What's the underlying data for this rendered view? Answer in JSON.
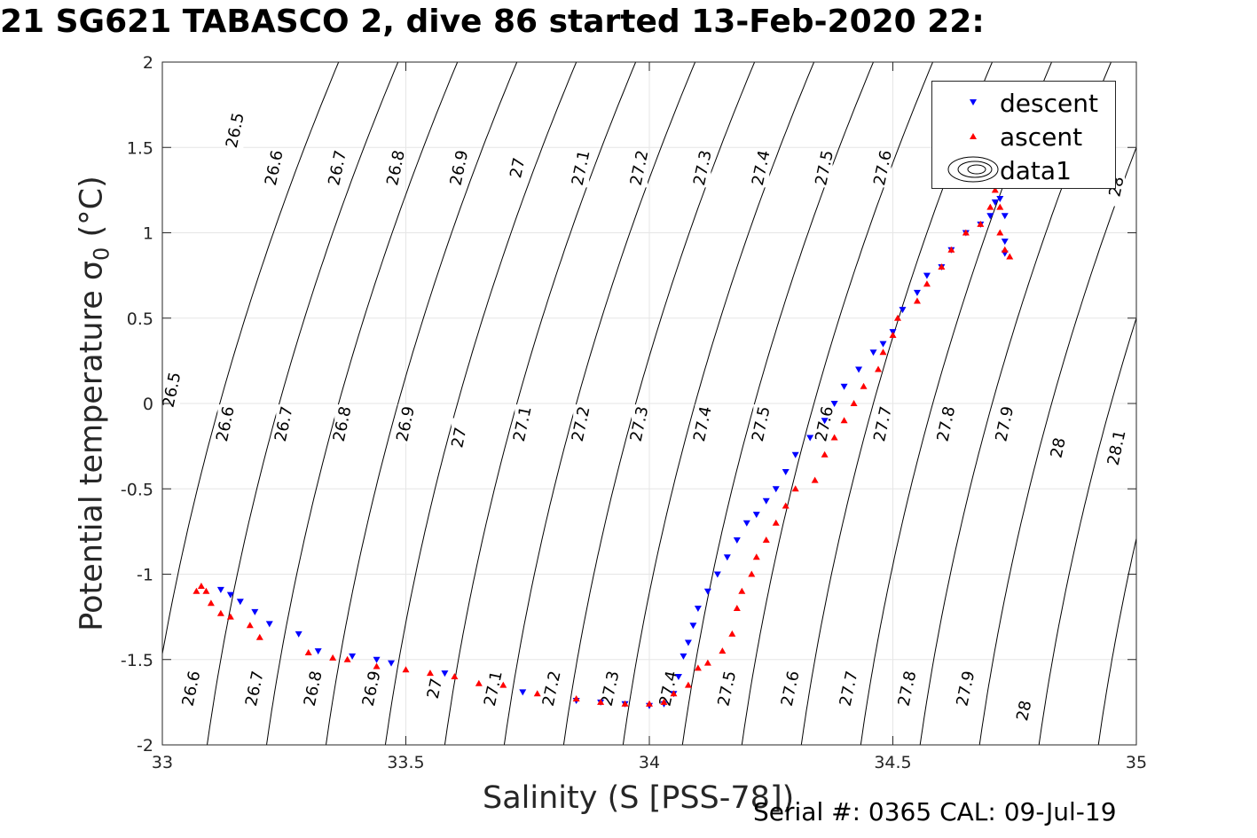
{
  "title": "21 SG621 TABASCO 2, dive 86 started 13-Feb-2020 22:",
  "footer": "Serial #: 0365  CAL: 09-Jul-19",
  "colors": {
    "descent": "#0000ff",
    "ascent": "#ff0000",
    "contour": "#000000",
    "grid": "#e6e6e6"
  },
  "chart_data": {
    "type": "scatter",
    "xlabel": "Salinity (S [PSS-78])",
    "ylabel": "Potential temperature",
    "ylabel_symbol": "σ",
    "ylabel_subscript": "0",
    "ylabel_unit": "(°C)",
    "xlim": [
      33,
      35
    ],
    "ylim": [
      -2,
      2
    ],
    "xticks": [
      "33",
      "33.5",
      "34",
      "34.5",
      "35"
    ],
    "yticks": [
      "-2",
      "-1.5",
      "-1",
      "-0.5",
      "0",
      "0.5",
      "1",
      "1.5",
      "2"
    ],
    "grid": true,
    "legend_position": "top-right",
    "legend": [
      "descent",
      "ascent",
      "data1"
    ],
    "contour_levels": [
      "26.5",
      "26.6",
      "26.7",
      "26.8",
      "26.9",
      "27",
      "27.1",
      "27.2",
      "27.3",
      "27.4",
      "27.5",
      "27.6",
      "27.7",
      "27.8",
      "27.9",
      "28",
      "28.1"
    ],
    "contour_labels": [
      {
        "text": "26.5",
        "x": 33.15,
        "y": 1.6
      },
      {
        "text": "26.6",
        "x": 33.23,
        "y": 1.38
      },
      {
        "text": "26.7",
        "x": 33.36,
        "y": 1.38
      },
      {
        "text": "26.8",
        "x": 33.48,
        "y": 1.38
      },
      {
        "text": "26.9",
        "x": 33.61,
        "y": 1.38
      },
      {
        "text": "27",
        "x": 33.73,
        "y": 1.38
      },
      {
        "text": "27.1",
        "x": 33.86,
        "y": 1.38
      },
      {
        "text": "27.2",
        "x": 33.98,
        "y": 1.38
      },
      {
        "text": "27.3",
        "x": 34.11,
        "y": 1.38
      },
      {
        "text": "27.4",
        "x": 34.23,
        "y": 1.38
      },
      {
        "text": "27.5",
        "x": 34.36,
        "y": 1.38
      },
      {
        "text": "27.6",
        "x": 34.48,
        "y": 1.38
      },
      {
        "text": "28",
        "x": 34.96,
        "y": 1.27
      },
      {
        "text": "26.5",
        "x": 33.02,
        "y": 0.08
      },
      {
        "text": "26.6",
        "x": 33.13,
        "y": -0.12
      },
      {
        "text": "26.7",
        "x": 33.25,
        "y": -0.12
      },
      {
        "text": "26.8",
        "x": 33.37,
        "y": -0.12
      },
      {
        "text": "26.9",
        "x": 33.5,
        "y": -0.12
      },
      {
        "text": "27",
        "x": 33.61,
        "y": -0.2
      },
      {
        "text": "27.1",
        "x": 33.74,
        "y": -0.12
      },
      {
        "text": "27.2",
        "x": 33.86,
        "y": -0.12
      },
      {
        "text": "27.3",
        "x": 33.98,
        "y": -0.12
      },
      {
        "text": "27.4",
        "x": 34.11,
        "y": -0.12
      },
      {
        "text": "27.5",
        "x": 34.23,
        "y": -0.12
      },
      {
        "text": "27.6",
        "x": 34.36,
        "y": -0.12
      },
      {
        "text": "27.7",
        "x": 34.48,
        "y": -0.12
      },
      {
        "text": "27.8",
        "x": 34.61,
        "y": -0.12
      },
      {
        "text": "27.9",
        "x": 34.73,
        "y": -0.12
      },
      {
        "text": "28",
        "x": 34.84,
        "y": -0.26
      },
      {
        "text": "28.1",
        "x": 34.96,
        "y": -0.26
      },
      {
        "text": "26.6",
        "x": 33.06,
        "y": -1.67
      },
      {
        "text": "26.7",
        "x": 33.19,
        "y": -1.67
      },
      {
        "text": "26.8",
        "x": 33.31,
        "y": -1.67
      },
      {
        "text": "26.9",
        "x": 33.43,
        "y": -1.67
      },
      {
        "text": "27",
        "x": 33.56,
        "y": -1.67
      },
      {
        "text": "27.1",
        "x": 33.68,
        "y": -1.67
      },
      {
        "text": "27.2",
        "x": 33.8,
        "y": -1.67
      },
      {
        "text": "27.3",
        "x": 33.92,
        "y": -1.67
      },
      {
        "text": "27.4",
        "x": 34.04,
        "y": -1.67
      },
      {
        "text": "27.5",
        "x": 34.16,
        "y": -1.67
      },
      {
        "text": "27.6",
        "x": 34.29,
        "y": -1.67
      },
      {
        "text": "27.7",
        "x": 34.41,
        "y": -1.67
      },
      {
        "text": "27.8",
        "x": 34.53,
        "y": -1.67
      },
      {
        "text": "27.9",
        "x": 34.65,
        "y": -1.67
      },
      {
        "text": "28",
        "x": 34.77,
        "y": -1.8
      }
    ],
    "series": [
      {
        "name": "descent",
        "marker": "triangle-down",
        "points": [
          [
            33.12,
            -1.09
          ],
          [
            33.14,
            -1.12
          ],
          [
            33.16,
            -1.16
          ],
          [
            33.19,
            -1.22
          ],
          [
            33.22,
            -1.29
          ],
          [
            33.28,
            -1.35
          ],
          [
            33.32,
            -1.45
          ],
          [
            33.39,
            -1.48
          ],
          [
            33.44,
            -1.5
          ],
          [
            33.47,
            -1.52
          ],
          [
            33.58,
            -1.58
          ],
          [
            33.74,
            -1.69
          ],
          [
            33.85,
            -1.74
          ],
          [
            33.9,
            -1.75
          ],
          [
            33.95,
            -1.76
          ],
          [
            34.0,
            -1.77
          ],
          [
            34.03,
            -1.76
          ],
          [
            34.05,
            -1.7
          ],
          [
            34.06,
            -1.6
          ],
          [
            34.07,
            -1.48
          ],
          [
            34.08,
            -1.4
          ],
          [
            34.09,
            -1.3
          ],
          [
            34.1,
            -1.2
          ],
          [
            34.12,
            -1.1
          ],
          [
            34.14,
            -1.0
          ],
          [
            34.16,
            -0.9
          ],
          [
            34.18,
            -0.8
          ],
          [
            34.2,
            -0.7
          ],
          [
            34.22,
            -0.65
          ],
          [
            34.24,
            -0.57
          ],
          [
            34.26,
            -0.5
          ],
          [
            34.28,
            -0.4
          ],
          [
            34.3,
            -0.3
          ],
          [
            34.33,
            -0.2
          ],
          [
            34.36,
            -0.1
          ],
          [
            34.38,
            0.0
          ],
          [
            34.4,
            0.1
          ],
          [
            34.43,
            0.2
          ],
          [
            34.46,
            0.3
          ],
          [
            34.48,
            0.35
          ],
          [
            34.5,
            0.42
          ],
          [
            34.52,
            0.55
          ],
          [
            34.55,
            0.65
          ],
          [
            34.57,
            0.75
          ],
          [
            34.6,
            0.8
          ],
          [
            34.62,
            0.9
          ],
          [
            34.65,
            1.0
          ],
          [
            34.68,
            1.05
          ],
          [
            34.7,
            1.1
          ],
          [
            34.71,
            1.18
          ],
          [
            34.72,
            1.2
          ],
          [
            34.73,
            1.1
          ],
          [
            34.73,
            0.95
          ],
          [
            34.73,
            0.88
          ]
        ]
      },
      {
        "name": "ascent",
        "marker": "triangle-up",
        "points": [
          [
            33.07,
            -1.1
          ],
          [
            33.08,
            -1.07
          ],
          [
            33.09,
            -1.1
          ],
          [
            33.1,
            -1.17
          ],
          [
            33.12,
            -1.23
          ],
          [
            33.14,
            -1.25
          ],
          [
            33.18,
            -1.3
          ],
          [
            33.2,
            -1.37
          ],
          [
            33.3,
            -1.46
          ],
          [
            33.35,
            -1.49
          ],
          [
            33.38,
            -1.5
          ],
          [
            33.44,
            -1.54
          ],
          [
            33.5,
            -1.56
          ],
          [
            33.55,
            -1.58
          ],
          [
            33.6,
            -1.6
          ],
          [
            33.65,
            -1.64
          ],
          [
            33.7,
            -1.65
          ],
          [
            33.77,
            -1.7
          ],
          [
            33.85,
            -1.73
          ],
          [
            33.9,
            -1.75
          ],
          [
            33.95,
            -1.76
          ],
          [
            34.0,
            -1.76
          ],
          [
            34.03,
            -1.75
          ],
          [
            34.05,
            -1.7
          ],
          [
            34.08,
            -1.65
          ],
          [
            34.1,
            -1.55
          ],
          [
            34.12,
            -1.52
          ],
          [
            34.15,
            -1.45
          ],
          [
            34.17,
            -1.35
          ],
          [
            34.18,
            -1.2
          ],
          [
            34.19,
            -1.1
          ],
          [
            34.21,
            -1.0
          ],
          [
            34.22,
            -0.9
          ],
          [
            34.24,
            -0.8
          ],
          [
            34.26,
            -0.7
          ],
          [
            34.28,
            -0.6
          ],
          [
            34.3,
            -0.5
          ],
          [
            34.34,
            -0.45
          ],
          [
            34.36,
            -0.3
          ],
          [
            34.38,
            -0.2
          ],
          [
            34.4,
            -0.1
          ],
          [
            34.42,
            0.0
          ],
          [
            34.44,
            0.1
          ],
          [
            34.47,
            0.2
          ],
          [
            34.48,
            0.3
          ],
          [
            34.5,
            0.4
          ],
          [
            34.51,
            0.5
          ],
          [
            34.55,
            0.6
          ],
          [
            34.57,
            0.7
          ],
          [
            34.6,
            0.8
          ],
          [
            34.62,
            0.9
          ],
          [
            34.65,
            1.0
          ],
          [
            34.68,
            1.05
          ],
          [
            34.7,
            1.15
          ],
          [
            34.71,
            1.25
          ],
          [
            34.72,
            1.15
          ],
          [
            34.72,
            1.0
          ],
          [
            34.73,
            0.9
          ],
          [
            34.74,
            0.86
          ]
        ]
      }
    ]
  }
}
